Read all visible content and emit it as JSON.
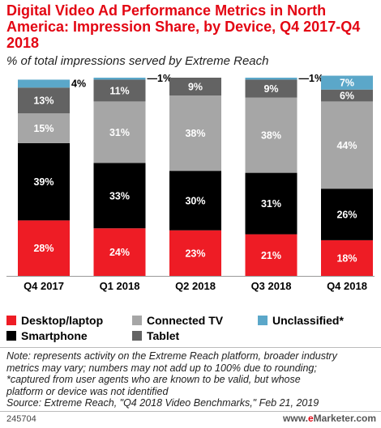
{
  "title": "Digital Video Ad Performance Metrics in North America: Impression Share, by Device, Q4 2017-Q4 2018",
  "subtitle": "% of total impressions served by Extreme Reach",
  "chart_data": {
    "type": "bar",
    "stacked": true,
    "categories": [
      "Q4 2017",
      "Q1 2018",
      "Q2 2018",
      "Q3 2018",
      "Q4 2018"
    ],
    "series": [
      {
        "name": "Desktop/laptop",
        "color": "#ee1c25",
        "values": [
          28,
          24,
          23,
          21,
          18
        ],
        "labels": [
          "28%",
          "24%",
          "23%",
          "21%",
          "18%"
        ]
      },
      {
        "name": "Smartphone",
        "color": "#000000",
        "values": [
          39,
          33,
          30,
          31,
          26
        ],
        "labels": [
          "39%",
          "33%",
          "30%",
          "31%",
          "26%"
        ]
      },
      {
        "name": "Connected TV",
        "color": "#a6a6a6",
        "values": [
          15,
          31,
          38,
          38,
          44
        ],
        "labels": [
          "15%",
          "31%",
          "38%",
          "38%",
          "44%"
        ]
      },
      {
        "name": "Tablet",
        "color": "#636363",
        "values": [
          13,
          11,
          9,
          9,
          6
        ],
        "labels": [
          "13%",
          "11%",
          "9%",
          "9%",
          "6%"
        ]
      },
      {
        "name": "Unclassified*",
        "color": "#5ba7c9",
        "values": [
          4,
          1,
          0,
          1,
          7
        ],
        "labels": [
          "4%",
          "—1%",
          "",
          "—1%",
          "7%"
        ]
      }
    ],
    "ylim": [
      0,
      100
    ],
    "grid": false,
    "legend_position": "bottom"
  },
  "legend": [
    {
      "label": "Desktop/laptop",
      "color": "#ee1c25"
    },
    {
      "label": "Connected TV",
      "color": "#a6a6a6"
    },
    {
      "label": "Unclassified*",
      "color": "#5ba7c9"
    },
    {
      "label": "Smartphone",
      "color": "#000000"
    },
    {
      "label": "Tablet",
      "color": "#636363"
    }
  ],
  "note": {
    "line1": "Note: represents activity on the Extreme Reach platform, broader industry",
    "line2": "metrics may vary; numbers may not add up to 100% due to rounding;",
    "line3": "*captured from user agents who are known to be valid, but whose",
    "line4": "platform or device was not identified",
    "source": "Source: Extreme Reach, \"Q4 2018 Video Benchmarks,\" Feb 21, 2019"
  },
  "footer": {
    "chart_id": "245704",
    "brand_prefix": "www.",
    "brand_e": "e",
    "brand_rest": "Marketer.com"
  }
}
